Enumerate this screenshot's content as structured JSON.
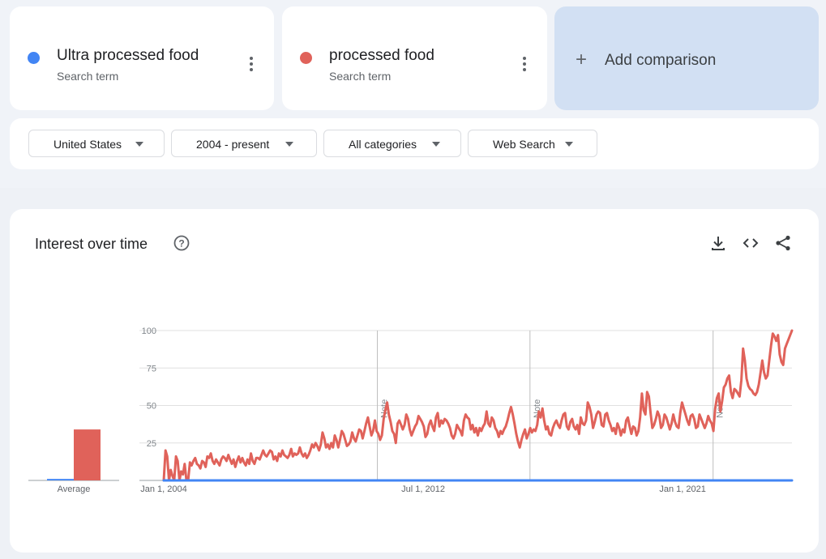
{
  "terms": [
    {
      "title": "Ultra processed food",
      "subtitle": "Search term",
      "color": "#4285f4"
    },
    {
      "title": "processed food",
      "subtitle": "Search term",
      "color": "#e0625a"
    }
  ],
  "add_comparison": {
    "label": "Add comparison"
  },
  "filters": {
    "region": "United States",
    "time": "2004 - present",
    "category": "All categories",
    "search_type": "Web Search"
  },
  "chart_section": {
    "title": "Interest over time",
    "average_label": "Average",
    "note_label": "Note"
  },
  "chart_data": {
    "type": "line",
    "title": "Interest over time",
    "xlabel": "",
    "ylabel": "",
    "ylim": [
      0,
      100
    ],
    "x_tick_labels": [
      "Jan 1, 2004",
      "Jul 1, 2012",
      "Jan 1, 2021"
    ],
    "y_tick_labels": [
      "25",
      "50",
      "75",
      "100"
    ],
    "x_range": [
      "2004-01",
      "2024-08"
    ],
    "grid": true,
    "notes": [
      "2011-01",
      "2016-01",
      "2022-01"
    ],
    "averages": [
      {
        "series": "Ultra processed food",
        "value": 1
      },
      {
        "series": "processed food",
        "value": 34
      }
    ],
    "series": [
      {
        "name": "processed food",
        "color": "#e0625a",
        "values": [
          0,
          20,
          16,
          0,
          7,
          3,
          0,
          16,
          13,
          0,
          6,
          4,
          11,
          0,
          0,
          12,
          10,
          13,
          15,
          11,
          10,
          8,
          13,
          12,
          9,
          16,
          15,
          18,
          13,
          11,
          14,
          12,
          10,
          14,
          16,
          15,
          13,
          17,
          14,
          11,
          14,
          9,
          13,
          16,
          12,
          15,
          12,
          10,
          14,
          11,
          18,
          13,
          11,
          15,
          15,
          14,
          17,
          20,
          17,
          16,
          18,
          20,
          19,
          14,
          16,
          13,
          18,
          16,
          20,
          17,
          16,
          15,
          17,
          21,
          16,
          18,
          17,
          18,
          22,
          18,
          16,
          18,
          15,
          17,
          20,
          24,
          22,
          25,
          23,
          20,
          24,
          32,
          28,
          22,
          24,
          21,
          25,
          22,
          30,
          27,
          22,
          27,
          33,
          31,
          27,
          23,
          24,
          26,
          32,
          28,
          26,
          30,
          34,
          33,
          28,
          33,
          38,
          42,
          36,
          30,
          33,
          40,
          33,
          31,
          27,
          30,
          41,
          47,
          52,
          44,
          39,
          33,
          31,
          25,
          38,
          40,
          37,
          34,
          37,
          44,
          41,
          34,
          30,
          33,
          36,
          38,
          43,
          41,
          39,
          36,
          29,
          31,
          37,
          40,
          36,
          33,
          42,
          45,
          36,
          40,
          38,
          41,
          40,
          38,
          35,
          30,
          28,
          31,
          37,
          35,
          33,
          30,
          40,
          44,
          42,
          41,
          34,
          37,
          32,
          35,
          30,
          35,
          33,
          36,
          38,
          46,
          38,
          36,
          42,
          40,
          35,
          33,
          29,
          33,
          31,
          34,
          36,
          40,
          45,
          49,
          44,
          38,
          31,
          26,
          22,
          27,
          31,
          34,
          28,
          31,
          35,
          32,
          34,
          33,
          37,
          46,
          42,
          48,
          40,
          34,
          36,
          31,
          30,
          35,
          38,
          40,
          37,
          35,
          40,
          44,
          45,
          36,
          34,
          39,
          41,
          36,
          34,
          37,
          31,
          42,
          38,
          37,
          40,
          52,
          49,
          44,
          35,
          39,
          44,
          46,
          45,
          37,
          36,
          44,
          45,
          40,
          37,
          33,
          35,
          31,
          38,
          35,
          30,
          34,
          32,
          40,
          42,
          36,
          31,
          36,
          35,
          30,
          33,
          42,
          58,
          47,
          44,
          59,
          56,
          45,
          35,
          37,
          41,
          46,
          43,
          35,
          37,
          44,
          42,
          38,
          34,
          38,
          44,
          39,
          36,
          35,
          45,
          52,
          48,
          44,
          40,
          37,
          43,
          44,
          41,
          35,
          36,
          44,
          41,
          38,
          35,
          38,
          43,
          40,
          38,
          33,
          48,
          55,
          58,
          46,
          53,
          62,
          64,
          68,
          70,
          59,
          55,
          61,
          60,
          58,
          56,
          67,
          88,
          80,
          68,
          63,
          61,
          60,
          58,
          57,
          59,
          64,
          72,
          80,
          72,
          68,
          70,
          80,
          90,
          98,
          96,
          93,
          97,
          84,
          79,
          77,
          88,
          91,
          94,
          97,
          100
        ]
      },
      {
        "name": "Ultra processed food",
        "color": "#4285f4",
        "values": [
          0,
          0,
          0,
          0,
          0,
          0,
          0,
          0,
          0,
          0,
          0,
          0,
          0,
          0,
          0,
          0,
          0,
          0,
          0,
          0,
          0,
          0,
          0,
          0,
          0,
          0,
          0,
          0,
          0,
          0,
          0,
          0,
          0,
          0,
          0,
          0,
          0,
          0,
          0,
          0,
          0,
          0,
          0,
          0,
          0,
          0,
          0,
          0,
          0,
          0,
          0,
          0,
          0,
          0,
          0,
          0,
          0,
          0,
          0,
          0,
          0,
          0,
          0,
          0,
          0,
          0,
          0,
          0,
          0,
          0,
          0,
          0,
          0,
          0,
          0,
          0,
          0,
          0,
          0,
          0,
          0,
          0,
          0,
          0,
          0,
          0,
          0,
          0,
          0,
          0,
          0,
          0,
          0,
          0,
          0,
          0,
          0,
          0,
          0,
          0,
          0,
          0,
          0,
          0,
          0,
          0,
          0,
          0,
          0,
          0,
          0,
          0,
          0,
          0,
          0,
          0,
          0,
          0,
          0,
          0,
          0,
          0,
          0,
          0,
          0,
          0,
          0,
          0,
          0,
          0,
          0,
          0,
          0,
          0,
          0,
          0,
          0,
          0,
          0,
          0,
          0,
          0,
          0,
          0,
          0,
          0,
          0,
          0,
          0,
          0,
          0,
          0,
          0,
          0,
          0,
          0,
          0,
          0,
          0,
          0,
          0,
          0,
          0,
          0,
          0,
          0,
          0,
          0,
          0,
          0,
          0,
          0,
          0,
          0,
          0,
          0,
          0,
          0,
          0,
          0,
          0,
          0,
          0,
          0,
          0,
          0,
          0,
          0,
          0,
          0,
          0,
          0,
          0,
          0,
          0,
          0,
          0,
          0,
          0,
          0,
          0,
          0,
          0,
          0,
          0,
          0,
          0,
          0,
          0,
          0,
          0,
          0,
          0,
          0,
          0,
          0,
          0,
          0,
          0,
          0,
          0,
          0,
          0,
          0,
          0,
          0,
          0,
          0,
          0,
          0,
          0,
          0,
          0,
          0,
          0,
          0,
          0,
          0,
          0,
          0,
          0,
          0,
          0,
          0,
          0,
          0,
          0,
          0,
          0,
          0,
          0,
          0,
          0,
          0,
          0,
          0,
          0,
          0,
          0,
          0,
          0,
          0,
          0,
          0,
          0,
          0,
          0,
          0,
          0,
          0,
          0,
          0,
          0,
          0,
          0,
          0,
          0,
          0,
          0,
          0,
          0,
          0,
          0,
          0,
          0,
          0,
          0,
          0,
          0,
          0,
          0,
          0,
          0,
          0,
          0,
          0,
          0,
          0,
          0,
          0,
          0,
          0,
          0,
          0,
          0,
          0,
          0,
          0,
          0,
          0,
          0,
          0,
          0,
          0,
          0,
          0,
          0,
          0,
          0,
          0,
          0,
          0,
          0,
          0,
          0,
          0,
          0,
          0,
          0,
          0,
          0,
          0,
          0,
          0,
          0,
          0,
          0,
          0,
          0,
          0,
          0,
          0,
          0,
          0,
          0,
          0,
          0,
          0,
          0,
          0,
          0,
          0,
          0,
          0,
          0,
          0,
          0,
          0,
          0,
          0,
          0,
          0,
          0,
          0,
          0,
          0,
          0,
          0,
          0,
          0,
          0,
          0,
          0,
          0,
          0,
          0,
          0,
          0,
          0,
          0,
          0,
          0,
          0,
          0,
          0,
          0,
          0,
          0,
          0,
          0,
          0
        ]
      }
    ]
  }
}
